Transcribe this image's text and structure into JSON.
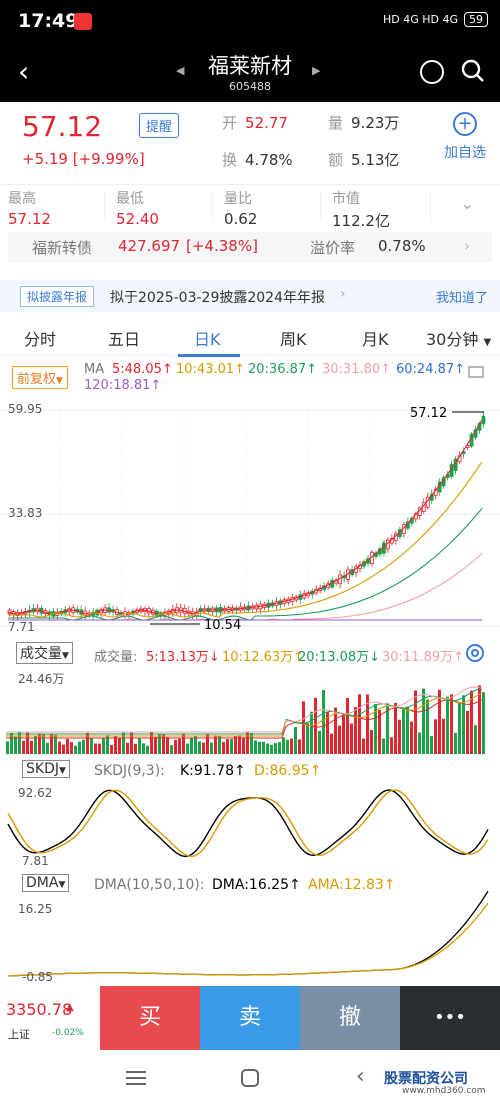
{
  "statusbar": {
    "time": "17:49",
    "signal": "HD 4G HD 4G",
    "battery": "59"
  },
  "header": {
    "name": "福莱新材",
    "code": "605488"
  },
  "quote": {
    "price": "57.12",
    "change": "+5.19",
    "change_pct": "[+9.99%]",
    "alert_label": "提醒",
    "open_label": "开",
    "open": "52.77",
    "volume_label": "量",
    "volume": "9.23万",
    "turnover_label": "换",
    "turnover": "4.78%",
    "amount_label": "额",
    "amount": "5.13亿",
    "add_fav": "加自选"
  },
  "stats": {
    "high_label": "最高",
    "high": "57.12",
    "low_label": "最低",
    "low": "52.40",
    "vr_label": "量比",
    "vr": "0.62",
    "mcap_label": "市值",
    "mcap": "112.2亿"
  },
  "bond": {
    "label": "福新转债",
    "value": "427.697",
    "pct": "[+4.38%]",
    "premium_label": "溢价率",
    "premium": "0.78%"
  },
  "notice": {
    "tag": "拟披露年报",
    "text": "拟于2025-03-29披露2024年年报",
    "ok": "我知道了"
  },
  "tabs": [
    "分时",
    "五日",
    "日K",
    "周K",
    "月K",
    "30分钟"
  ],
  "ma": {
    "fq": "前复权",
    "label": "MA",
    "ma5": "5:48.05↑",
    "ma10": "10:43.01↑",
    "ma20": "20:36.87↑",
    "ma30": "30:31.80↑",
    "ma60": "60:24.87↑",
    "ma120": "120:18.81↑"
  },
  "kchart": {
    "y_top": "59.95",
    "y_mid": "33.83",
    "y_bot": "7.71",
    "last_label": "57.12",
    "low_label": "10.54"
  },
  "volume": {
    "title": "成交量",
    "label": "成交量:",
    "v5": "5:13.13万↓",
    "v10": "10:12.63万↑",
    "v20": "20:13.08万↓",
    "v30": "30:11.89万↑",
    "ymax": "24.46万"
  },
  "skdj": {
    "title": "SKDJ",
    "params": "SKDJ(9,3):",
    "k": "K:91.78↑",
    "d": "D:86.95↑",
    "ymax": "92.62",
    "ymin": "7.81"
  },
  "dma": {
    "title": "DMA",
    "params": "DMA(10,50,10):",
    "dma": "DMA:16.25↑",
    "ama": "AMA:12.83↑",
    "ymax": "16.25",
    "ymin": "-0.85"
  },
  "bottom": {
    "index_value": "3350.78",
    "index_name": "上证",
    "index_pct": "-0.02%",
    "buy": "买",
    "sell": "卖",
    "cancel": "撤",
    "more": "•••"
  },
  "watermark": {
    "name": "股票配资公司",
    "url": "www.mhd360.com"
  },
  "colors": {
    "up": "#e0262f",
    "down": "#1ba34a",
    "accent": "#3a7bd5"
  }
}
